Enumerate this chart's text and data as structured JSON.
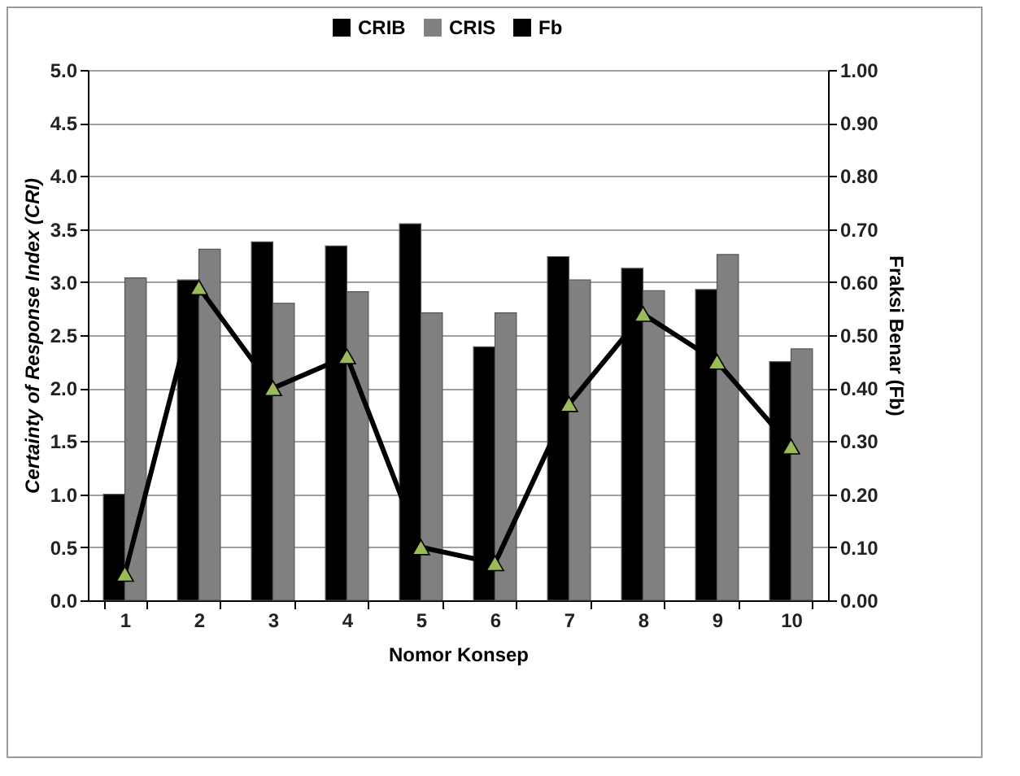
{
  "chart_data": {
    "type": "bar",
    "xlabel": "Nomor Konsep",
    "ylabel": "Certainty of Response Index (CRI)",
    "y2label": "Fraksi Benar (Fb)",
    "categories": [
      "1",
      "2",
      "3",
      "4",
      "5",
      "6",
      "7",
      "8",
      "9",
      "10"
    ],
    "series": [
      {
        "name": "CRIB",
        "color": "#000000",
        "values": [
          1.0,
          3.02,
          3.38,
          3.34,
          3.55,
          2.39,
          3.24,
          3.13,
          2.93,
          2.25
        ]
      },
      {
        "name": "CRIS",
        "color": "#808080",
        "values": [
          3.04,
          3.31,
          2.8,
          2.91,
          2.71,
          2.71,
          3.02,
          2.92,
          3.26,
          2.37
        ]
      },
      {
        "name": "Fb",
        "type": "line",
        "axis": "y2",
        "color": "#000000",
        "marker": "triangle",
        "values": [
          0.05,
          0.59,
          0.4,
          0.46,
          0.1,
          0.07,
          0.37,
          0.54,
          0.45,
          0.29
        ]
      }
    ],
    "ylim": [
      0,
      5
    ],
    "yticks": [
      {
        "value": 0,
        "label": "0.0"
      },
      0.5,
      {
        "value": 1,
        "label": "1.0"
      },
      1.5,
      {
        "value": 2,
        "label": "2.0"
      },
      2.5,
      {
        "value": 3,
        "label": "3.0"
      },
      3.5,
      {
        "value": 4,
        "label": "4.0"
      },
      4.5,
      {
        "value": 5,
        "label": "5.0"
      }
    ],
    "y2lim": [
      0,
      1
    ],
    "y2ticks": [
      {
        "value": 0,
        "label": "0.00"
      },
      {
        "value": 0.1,
        "label": "0.10"
      },
      {
        "value": 0.2,
        "label": "0.20"
      },
      {
        "value": 0.3,
        "label": "0.30"
      },
      {
        "value": 0.4,
        "label": "0.40"
      },
      {
        "value": 0.5,
        "label": "0.50"
      },
      {
        "value": 0.6,
        "label": "0.60"
      },
      {
        "value": 0.7,
        "label": "0.70"
      },
      {
        "value": 0.8,
        "label": "0.80"
      },
      {
        "value": 0.9,
        "label": "0.90"
      },
      {
        "value": 1,
        "label": "1.00"
      }
    ],
    "grid": "y",
    "legend": "top"
  }
}
